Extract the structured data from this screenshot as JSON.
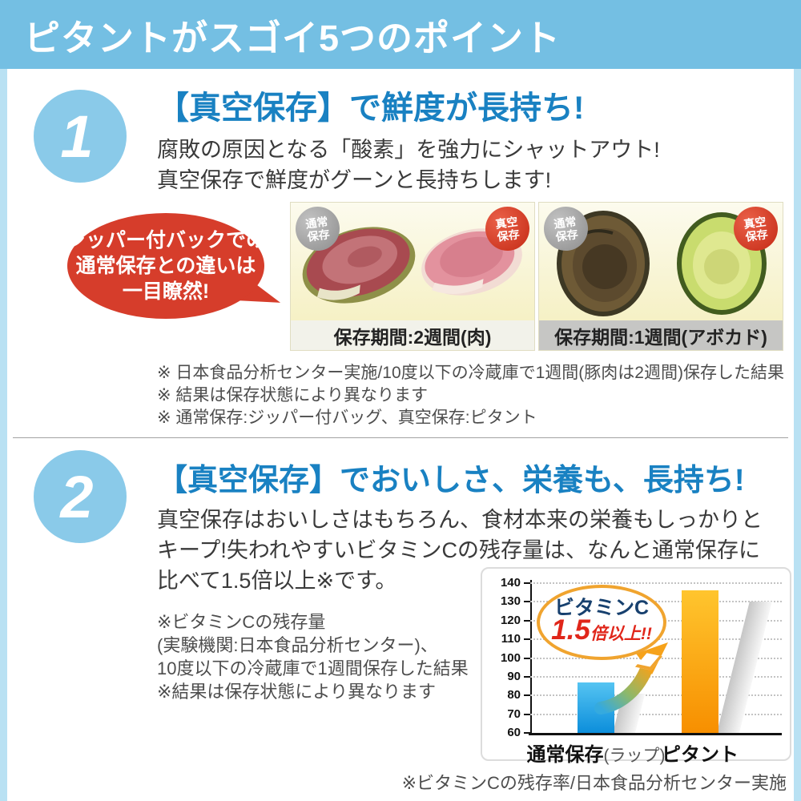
{
  "header": {
    "title": "ピタントがスゴイ5つのポイント"
  },
  "points": [
    {
      "number": "1",
      "heading": "【真空保存】で鮮度が長持ち!",
      "body_lines": [
        "腐敗の原因となる「酸素」を強力にシャットアウト!",
        "真空保存で鮮度がグーンと長持ちします!"
      ],
      "bubble_lines": [
        "ジッパー付バックでの",
        "通常保存との違いは",
        "一目瞭然!"
      ],
      "images": [
        {
          "subject": "肉",
          "left_badge": "通常\n保存",
          "right_badge": "真空\n保存",
          "caption": "保存期間:2週間(肉)"
        },
        {
          "subject": "アボカド",
          "left_badge": "通常\n保存",
          "right_badge": "真空\n保存",
          "caption": "保存期間:1週間(アボカド)"
        }
      ],
      "notes": [
        "※ 日本食品分析センター実施/10度以下の冷蔵庫で1週間(豚肉は2週間)保存した結果",
        "※ 結果は保存状態により異なります",
        "※ 通常保存:ジッパー付バッグ、真空保存:ピタント"
      ]
    },
    {
      "number": "2",
      "heading": "【真空保存】でおいしさ、栄養も、長持ち!",
      "body_lines": [
        "真空保存はおいしさはもちろん、食材本来の栄養もしっかりと",
        "キープ!失われやすいビタミンCの残存量は、なんと通常保存に",
        "比べて1.5倍以上※です。"
      ],
      "notes": [
        "※ビタミンCの残存量",
        "(実験機関:日本食品分析センター)、",
        "10度以下の冷蔵庫で1週間保存した結果",
        "※結果は保存状態により異なります"
      ],
      "chart_note": "※ビタミンCの残存率/日本食品分析センター実施"
    }
  ],
  "chart_data": {
    "type": "bar",
    "title": "",
    "categories": [
      "通常保存(ラップ)",
      "ピタント"
    ],
    "category_parts": [
      [
        "通常保存",
        "(ラップ)"
      ],
      [
        "ピタント",
        ""
      ]
    ],
    "values": [
      87,
      136
    ],
    "ylim": [
      60,
      140
    ],
    "yticks": [
      60,
      70,
      80,
      90,
      100,
      110,
      120,
      130,
      140
    ],
    "grid": "dashed-horizontal",
    "legend_position": "none",
    "bar_gradients": [
      [
        "#55c4f2",
        "#0c8edb"
      ],
      [
        "#ffc52e",
        "#f78f00"
      ]
    ],
    "annotation": {
      "line1": "ビタミンC",
      "big": "1.5",
      "rest": "倍以上!!"
    }
  },
  "colors": {
    "header_bg": "#74bfe3",
    "strip": "#b9e1f3",
    "circle_blue": "#8acae9",
    "heading_blue": "#1981c2",
    "red_bubble": "#d63d2b",
    "badge_red": "#c42a15",
    "badge_gray": "#8d8d8d",
    "bubble_border": "#f0a42f",
    "accent_red": "#e0261a",
    "accent_navy": "#17406e"
  }
}
